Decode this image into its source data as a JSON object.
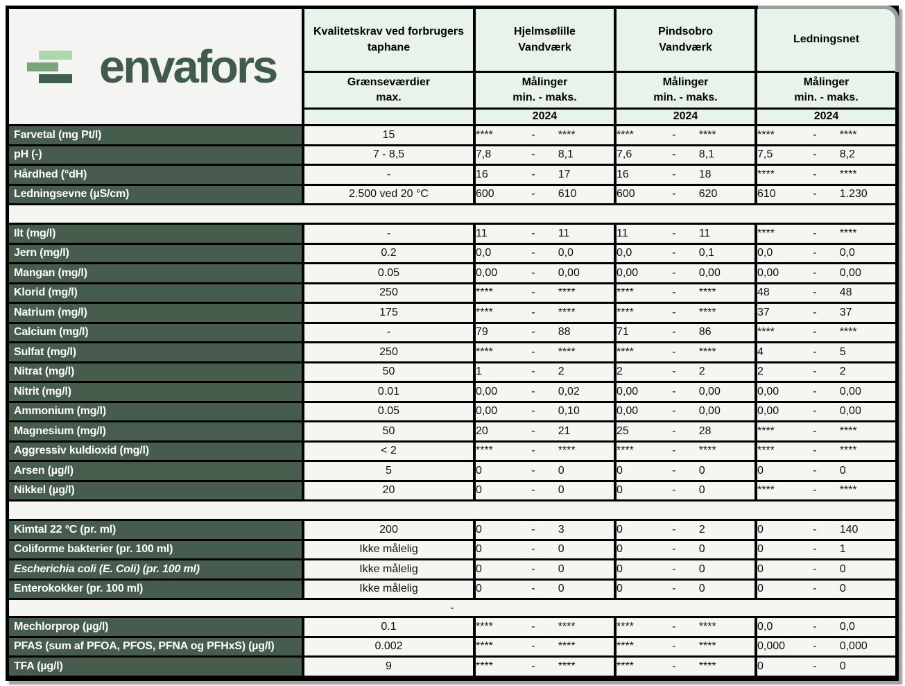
{
  "logo": {
    "text": "envafors",
    "text_color": "#3f5c4a",
    "bar_colors": [
      "#afd5ad",
      "#7ba57f",
      "#41604c"
    ]
  },
  "colors": {
    "label_bg": "#465d4d",
    "header_bg": "#e8f3ea",
    "cell_bg": "#f5f5f2",
    "border": "#000000"
  },
  "dash_separator": "-",
  "spacer_dash": "-",
  "header": {
    "columns": [
      {
        "title1": "Kvalitetskrav ved forbrugers",
        "title2": "taphane",
        "sub1": "Grænseværdier",
        "sub2": "max.",
        "year": ""
      },
      {
        "title1": "Hjelmsølille",
        "title2": "Vandværk",
        "sub1": "Målinger",
        "sub2": "min. - maks.",
        "year": "2024"
      },
      {
        "title1": "Pindsobro",
        "title2": "Vandværk",
        "sub1": "Målinger",
        "sub2": "min. - maks.",
        "year": "2024"
      },
      {
        "title1": "Ledningsnet",
        "title2": "",
        "sub1": "Målinger",
        "sub2": "min. - maks.",
        "year": "2024"
      }
    ]
  },
  "table": {
    "measurement_column_names": [
      "hjelmsolille",
      "pindsobro",
      "ledningsnet"
    ],
    "sections": [
      {
        "after": "spacer",
        "rows": [
          {
            "label": "Farvetal (mg Pt/l)",
            "limit": "15",
            "m": [
              [
                "****",
                "****"
              ],
              [
                "****",
                "****"
              ],
              [
                "****",
                "****"
              ]
            ]
          },
          {
            "label": "pH (-)",
            "limit": "7 - 8,5",
            "m": [
              [
                "7,8",
                "8,1"
              ],
              [
                "7,6",
                "8,1"
              ],
              [
                "7,5",
                "8,2"
              ]
            ]
          },
          {
            "label": "Hårdhed (°dH)",
            "limit": "-",
            "m": [
              [
                "16",
                "17"
              ],
              [
                "16",
                "18"
              ],
              [
                "****",
                "****"
              ]
            ]
          },
          {
            "label": "Ledningsevne (µS/cm)",
            "limit": "2.500 ved 20 °C",
            "m": [
              [
                "600",
                "610"
              ],
              [
                "600",
                "620"
              ],
              [
                "610",
                "1.230"
              ]
            ]
          }
        ]
      },
      {
        "after": "spacer",
        "rows": [
          {
            "label": "Ilt  (mg/l)",
            "limit": "-",
            "m": [
              [
                "11",
                "11"
              ],
              [
                "11",
                "11"
              ],
              [
                "****",
                "****"
              ]
            ]
          },
          {
            "label": "Jern (mg/l)",
            "limit": "0.2",
            "m": [
              [
                "0,0",
                "0,0"
              ],
              [
                "0,0",
                "0,1"
              ],
              [
                "0,0",
                "0,0"
              ]
            ]
          },
          {
            "label": "Mangan (mg/l)",
            "limit": "0.05",
            "m": [
              [
                "0,00",
                "0,00"
              ],
              [
                "0,00",
                "0,00"
              ],
              [
                "0,00",
                "0,00"
              ]
            ]
          },
          {
            "label": "Klorid (mg/l)",
            "limit": "250",
            "m": [
              [
                "****",
                "****"
              ],
              [
                "****",
                "****"
              ],
              [
                "48",
                "48"
              ]
            ]
          },
          {
            "label": "Natrium (mg/l)",
            "limit": "175",
            "m": [
              [
                "****",
                "****"
              ],
              [
                "****",
                "****"
              ],
              [
                "37",
                "37"
              ]
            ]
          },
          {
            "label": "Calcium (mg/l)",
            "limit": "-",
            "m": [
              [
                "79",
                "88"
              ],
              [
                "71",
                "86"
              ],
              [
                "****",
                "****"
              ]
            ]
          },
          {
            "label": "Sulfat (mg/l)",
            "limit": "250",
            "m": [
              [
                "****",
                "****"
              ],
              [
                "****",
                "****"
              ],
              [
                "4",
                "5"
              ]
            ]
          },
          {
            "label": "Nitrat (mg/l)",
            "limit": "50",
            "m": [
              [
                "1",
                "2"
              ],
              [
                "2",
                "2"
              ],
              [
                "2",
                "2"
              ]
            ]
          },
          {
            "label": "Nitrit (mg/l)",
            "limit": "0.01",
            "m": [
              [
                "0,00",
                "0,02"
              ],
              [
                "0,00",
                "0,00"
              ],
              [
                "0,00",
                "0,00"
              ]
            ]
          },
          {
            "label": "Ammonium (mg/l)",
            "limit": "0.05",
            "m": [
              [
                "0,00",
                "0,10"
              ],
              [
                "0,00",
                "0,00"
              ],
              [
                "0,00",
                "0,00"
              ]
            ]
          },
          {
            "label": "Magnesium (mg/l)",
            "limit": "50",
            "m": [
              [
                "20",
                "21"
              ],
              [
                "25",
                "28"
              ],
              [
                "****",
                "****"
              ]
            ]
          },
          {
            "label": "Aggressiv kuldioxid (mg/l)",
            "limit": "< 2",
            "m": [
              [
                "****",
                "****"
              ],
              [
                "****",
                "****"
              ],
              [
                "****",
                "****"
              ]
            ]
          },
          {
            "label": "Arsen (µg/l)",
            "limit": "5",
            "m": [
              [
                "0",
                "0"
              ],
              [
                "0",
                "0"
              ],
              [
                "0",
                "0"
              ]
            ]
          },
          {
            "label": "Nikkel (µg/l)",
            "limit": "20",
            "m": [
              [
                "0",
                "0"
              ],
              [
                "0",
                "0"
              ],
              [
                "****",
                "****"
              ]
            ]
          }
        ]
      },
      {
        "after": "dash",
        "rows": [
          {
            "label": "Kimtal 22 °C (pr. ml)",
            "limit": "200",
            "m": [
              [
                "0",
                "3"
              ],
              [
                "0",
                "2"
              ],
              [
                "0",
                "140"
              ]
            ]
          },
          {
            "label": "Coliforme bakterier (pr. 100 ml)",
            "limit": "Ikke målelig",
            "m": [
              [
                "0",
                "0"
              ],
              [
                "0",
                "0"
              ],
              [
                "0",
                "1"
              ]
            ]
          },
          {
            "label": "Escherichia coli (E. Coli) (pr. 100 ml)",
            "italic": true,
            "limit": "Ikke målelig",
            "m": [
              [
                "0",
                "0"
              ],
              [
                "0",
                "0"
              ],
              [
                "0",
                "0"
              ]
            ]
          },
          {
            "label": "Enterokokker (pr. 100 ml)",
            "limit": "Ikke målelig",
            "m": [
              [
                "0",
                "0"
              ],
              [
                "0",
                "0"
              ],
              [
                "0",
                "0"
              ]
            ]
          }
        ]
      },
      {
        "after": null,
        "rows": [
          {
            "label": "Mechlorprop (µg/l)",
            "limit": "0.1",
            "m": [
              [
                "****",
                "****"
              ],
              [
                "****",
                "****"
              ],
              [
                "0,0",
                "0,0"
              ]
            ]
          },
          {
            "label": "PFAS (sum af PFOA, PFOS, PFNA og PFHxS) (µg/l)",
            "limit": "0.002",
            "m": [
              [
                "****",
                "****"
              ],
              [
                "****",
                "****"
              ],
              [
                "0,000",
                "0,000"
              ]
            ]
          },
          {
            "label": "TFA (µg/l)",
            "limit": "9",
            "m": [
              [
                "****",
                "****"
              ],
              [
                "****",
                "****"
              ],
              [
                "0",
                "0"
              ]
            ]
          }
        ]
      }
    ]
  }
}
